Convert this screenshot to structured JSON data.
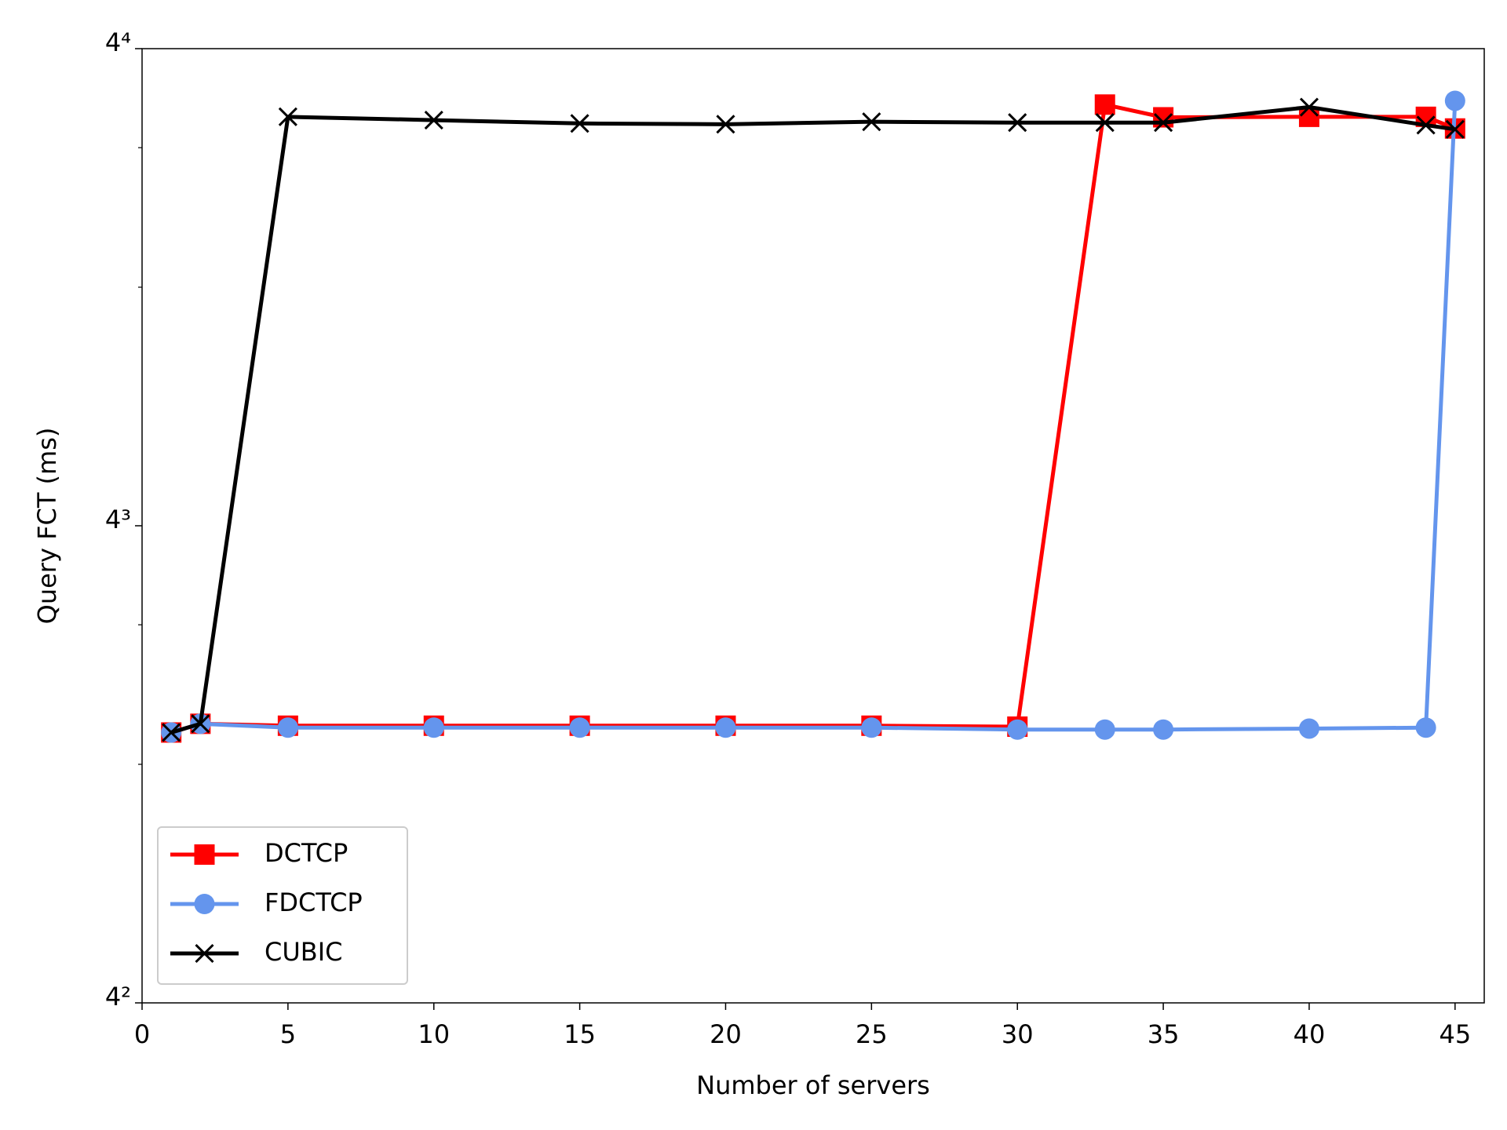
{
  "chart_data": {
    "type": "line",
    "x_label": "Number of servers",
    "y_label": "Query FCT (ms)",
    "x": [
      1,
      2,
      5,
      10,
      15,
      20,
      25,
      30,
      33,
      35,
      40,
      44,
      45
    ],
    "series": [
      {
        "name": "DCTCP",
        "color": "#ff0000",
        "marker": "square",
        "values": [
          35.1,
          36.0,
          35.8,
          35.8,
          35.8,
          35.8,
          35.8,
          35.7,
          217.6,
          209.7,
          210,
          210,
          203
        ]
      },
      {
        "name": "FDCTCP",
        "color": "#6495ed",
        "marker": "circle",
        "values": [
          35.1,
          36.0,
          35.6,
          35.6,
          35.6,
          35.6,
          35.6,
          35.4,
          35.4,
          35.4,
          35.5,
          35.6,
          220
        ]
      },
      {
        "name": "CUBIC",
        "color": "#000000",
        "marker": "x",
        "values": [
          35.1,
          36.0,
          210,
          208,
          206,
          205.5,
          207,
          206.5,
          206.5,
          206.5,
          216,
          205,
          202.5
        ]
      }
    ],
    "xlim": [
      0,
      46
    ],
    "xticks": [
      0,
      5,
      10,
      15,
      20,
      25,
      30,
      35,
      40,
      45
    ],
    "ylim": [
      16,
      256
    ],
    "yticks": [
      {
        "value": 16,
        "label": "4²"
      },
      {
        "value": 64,
        "label": "4³"
      },
      {
        "value": 256,
        "label": "4⁴"
      }
    ],
    "yminorticks": [
      32,
      48,
      128,
      192
    ],
    "yscale": "log",
    "grid": false,
    "legend": "lower left"
  }
}
